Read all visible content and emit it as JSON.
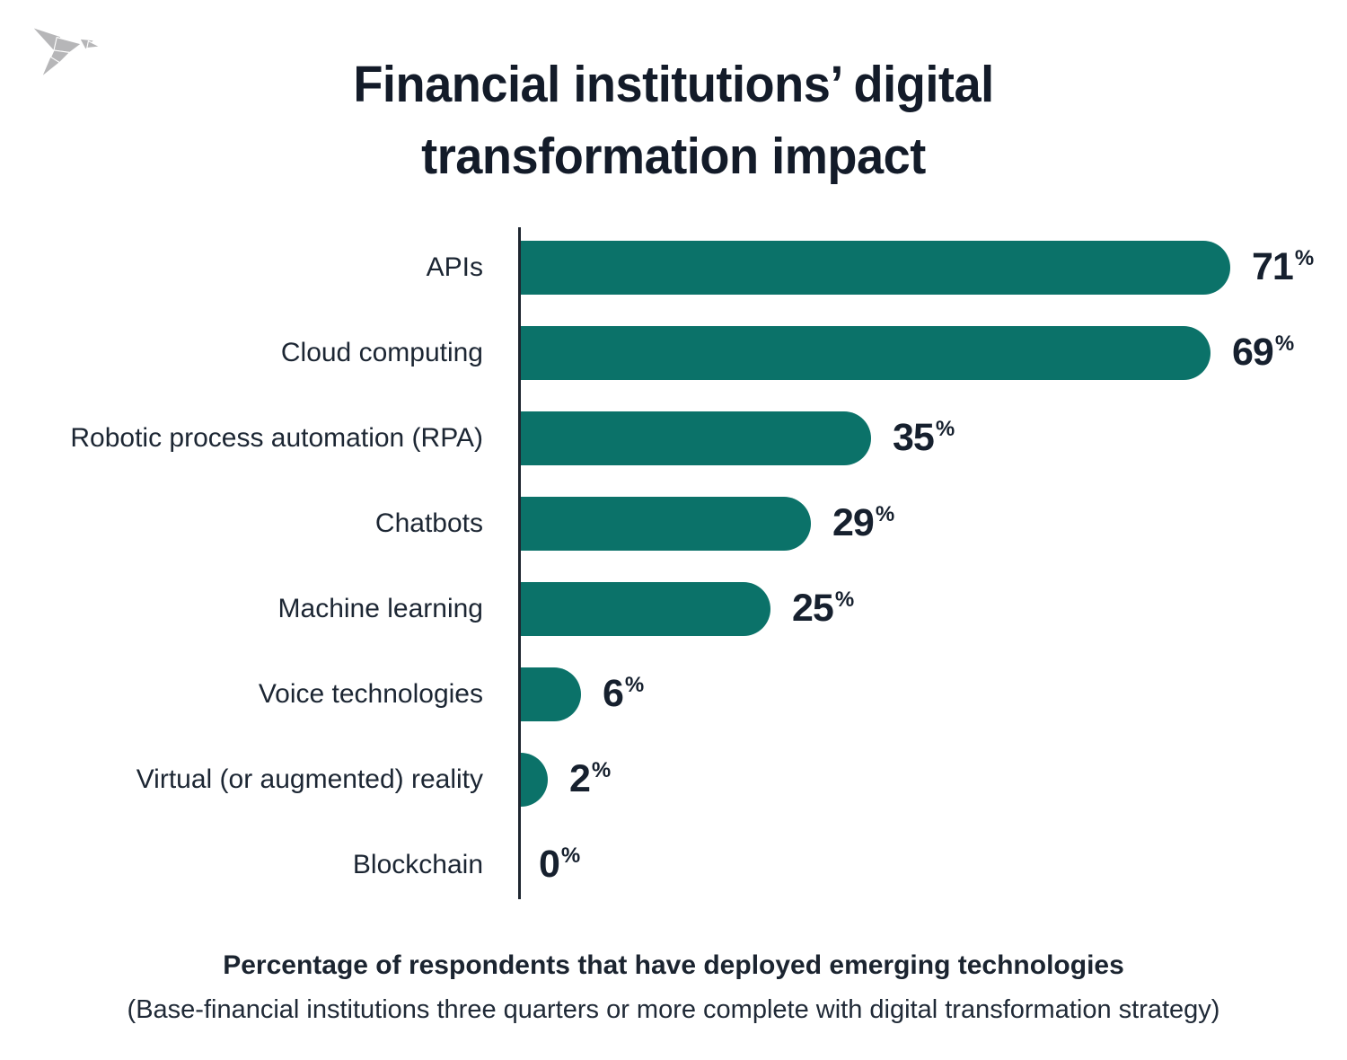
{
  "logo": {
    "icon": "origami-bird-icon",
    "color": "#b6b6b8"
  },
  "title": {
    "line1": "Financial institutions’ digital",
    "line2": "transformation impact"
  },
  "chart_data": {
    "type": "bar",
    "orientation": "horizontal",
    "title": "Financial institutions’ digital transformation impact",
    "categories": [
      "APIs",
      "Cloud computing",
      "Robotic process automation (RPA)",
      "Chatbots",
      "Machine learning",
      "Voice technologies",
      "Virtual (or augmented) reality",
      "Blockchain"
    ],
    "values": [
      71,
      69,
      35,
      29,
      25,
      6,
      2,
      0
    ],
    "unit": "%",
    "xlim": [
      0,
      100
    ],
    "grid": false,
    "legend": false,
    "value_labels": "end-of-bar",
    "bar_color": "#0b7269",
    "axis_color": "#1e2630",
    "text_color": "#1c2633"
  },
  "footer": {
    "line1": "Percentage of respondents that have deployed emerging technologies",
    "line2": "(Base-financial institutions three quarters or more complete with digital transformation strategy)"
  }
}
